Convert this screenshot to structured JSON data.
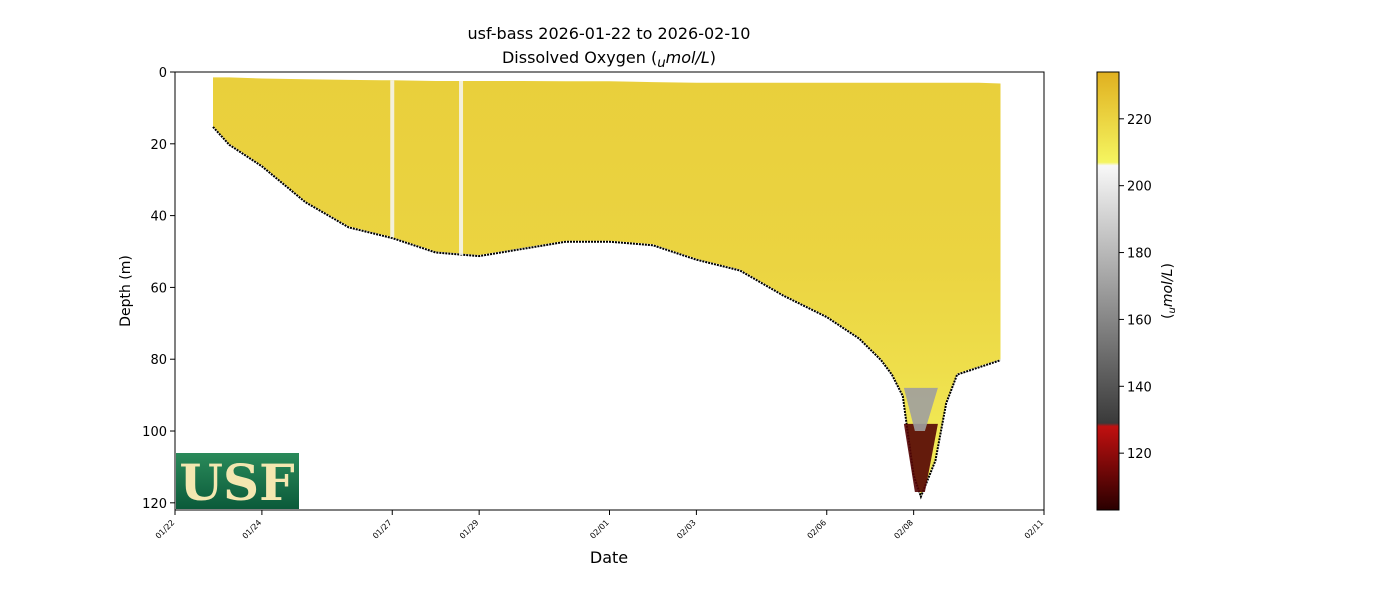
{
  "chart_data": {
    "type": "heatmap",
    "title": "usf-bass 2026-01-22 to 2026-02-10",
    "subtitle_main": "Dissolved Oxygen (",
    "subtitle_sub": "u",
    "subtitle_unit": "mol/L",
    "subtitle_close": ")",
    "xlabel": "Date",
    "ylabel": "Depth (m)",
    "colorbar_label_sub": "u",
    "colorbar_label_unit": "mol/L",
    "ylim": [
      0,
      122
    ],
    "y_inverted": true,
    "y_ticks": [
      0,
      20,
      40,
      60,
      80,
      100,
      120
    ],
    "x_range": [
      "2026-01-22",
      "2026-02-11"
    ],
    "x_ticks": [
      {
        "date": "2026-01-22",
        "label": "01/22"
      },
      {
        "date": "2026-01-24",
        "label": "01/24"
      },
      {
        "date": "2026-01-27",
        "label": "01/27"
      },
      {
        "date": "2026-01-29",
        "label": "01/29"
      },
      {
        "date": "2026-02-01",
        "label": "02/01"
      },
      {
        "date": "2026-02-03",
        "label": "02/03"
      },
      {
        "date": "2026-02-06",
        "label": "02/06"
      },
      {
        "date": "2026-02-08",
        "label": "02/08"
      },
      {
        "date": "2026-02-11",
        "label": "02/11"
      }
    ],
    "colorbar_range": [
      103,
      234
    ],
    "colorbar_ticks": [
      120,
      140,
      160,
      180,
      200,
      220
    ],
    "colormap_stops": [
      {
        "value": 103,
        "color": "#2a0000"
      },
      {
        "value": 128,
        "color": "#c01010"
      },
      {
        "value": 129,
        "color": "#3a3a3a"
      },
      {
        "value": 206,
        "color": "#f8f8f8"
      },
      {
        "value": 207,
        "color": "#f5f560"
      },
      {
        "value": 234,
        "color": "#e0b020"
      }
    ],
    "profile_extent": [
      {
        "date": "2026-01-22T21:00",
        "top": 1.5,
        "bottom": 15
      },
      {
        "date": "2026-01-23T06:00",
        "top": 1.5,
        "bottom": 20
      },
      {
        "date": "2026-01-24T00:00",
        "top": 1.8,
        "bottom": 26
      },
      {
        "date": "2026-01-25T00:00",
        "top": 2,
        "bottom": 36
      },
      {
        "date": "2026-01-26T00:00",
        "top": 2.2,
        "bottom": 43
      },
      {
        "date": "2026-01-27T00:00",
        "top": 2.3,
        "bottom": 46
      },
      {
        "date": "2026-01-28T00:00",
        "top": 2.5,
        "bottom": 50
      },
      {
        "date": "2026-01-29T00:00",
        "top": 2.5,
        "bottom": 51
      },
      {
        "date": "2026-01-30T00:00",
        "top": 2.5,
        "bottom": 49
      },
      {
        "date": "2026-01-31T00:00",
        "top": 2.6,
        "bottom": 47
      },
      {
        "date": "2026-02-01T00:00",
        "top": 2.6,
        "bottom": 47
      },
      {
        "date": "2026-02-02T00:00",
        "top": 2.8,
        "bottom": 48
      },
      {
        "date": "2026-02-03T00:00",
        "top": 3,
        "bottom": 52
      },
      {
        "date": "2026-02-04T00:00",
        "top": 3,
        "bottom": 55
      },
      {
        "date": "2026-02-05T00:00",
        "top": 3,
        "bottom": 62
      },
      {
        "date": "2026-02-06T00:00",
        "top": 3,
        "bottom": 68
      },
      {
        "date": "2026-02-06T18:00",
        "top": 3,
        "bottom": 74
      },
      {
        "date": "2026-02-07T06:00",
        "top": 3,
        "bottom": 80
      },
      {
        "date": "2026-02-07T12:00",
        "top": 3,
        "bottom": 84
      },
      {
        "date": "2026-02-07T18:00",
        "top": 3,
        "bottom": 90
      },
      {
        "date": "2026-02-08T00:00",
        "top": 3,
        "bottom": 112
      },
      {
        "date": "2026-02-08T04:00",
        "top": 3,
        "bottom": 118
      },
      {
        "date": "2026-02-08T12:00",
        "top": 3,
        "bottom": 108
      },
      {
        "date": "2026-02-08T18:00",
        "top": 3,
        "bottom": 92
      },
      {
        "date": "2026-02-09T00:00",
        "top": 3,
        "bottom": 84
      },
      {
        "date": "2026-02-09T12:00",
        "top": 3,
        "bottom": 82
      },
      {
        "date": "2026-02-10T00:00",
        "top": 3.2,
        "bottom": 80
      }
    ],
    "features": [
      {
        "kind": "low_oxygen_pocket",
        "date": "2026-02-08T04:00",
        "depth_top": 98,
        "depth_bottom": 117,
        "value": 110
      },
      {
        "kind": "transition_band",
        "date": "2026-02-08T04:00",
        "depth_top": 88,
        "depth_bottom": 100,
        "value": 170
      },
      {
        "kind": "white_streak",
        "date": "2026-01-27T00:00",
        "value": 205
      },
      {
        "kind": "white_streak",
        "date": "2026-01-28T14:00",
        "value": 205
      }
    ],
    "logo": {
      "text": "USF",
      "position": "bottom-left"
    },
    "grid": false
  }
}
